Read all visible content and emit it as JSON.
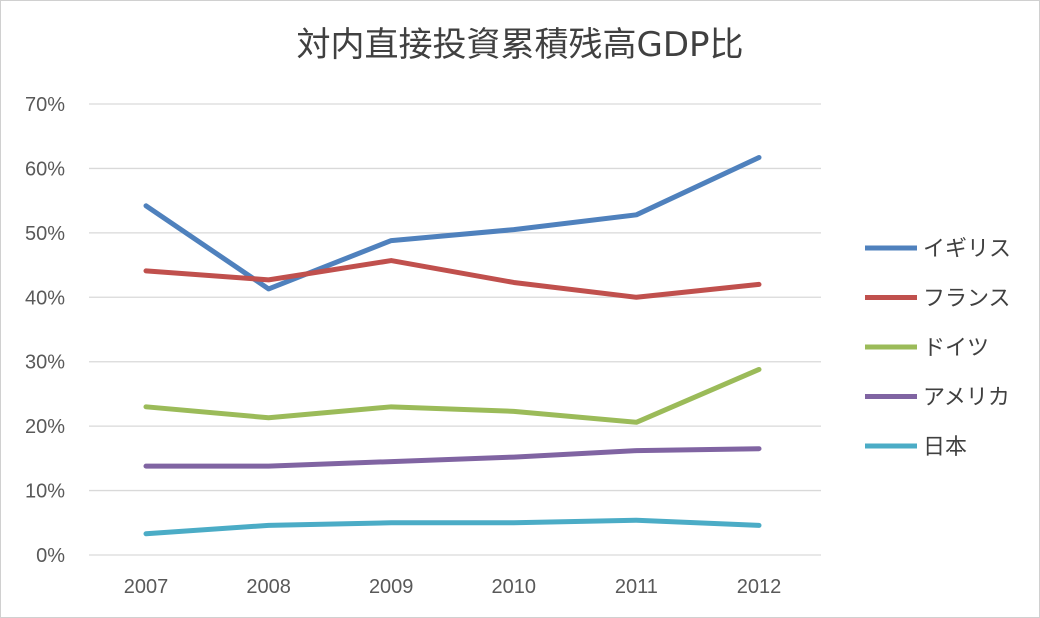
{
  "chart_data": {
    "type": "line",
    "title": "対内直接投資累積残高GDP比",
    "xlabel": "",
    "ylabel": "",
    "categories": [
      "2007",
      "2008",
      "2009",
      "2010",
      "2011",
      "2012"
    ],
    "ylim": [
      0,
      70
    ],
    "y_ticks": [
      "0%",
      "10%",
      "20%",
      "30%",
      "40%",
      "50%",
      "60%",
      "70%"
    ],
    "grid": true,
    "legend_position": "right",
    "series": [
      {
        "name": "イギリス",
        "color": "#4f81bd",
        "values": [
          54.2,
          41.3,
          48.8,
          50.5,
          52.8,
          61.7
        ]
      },
      {
        "name": "フランス",
        "color": "#c0504d",
        "values": [
          44.1,
          42.7,
          45.7,
          42.3,
          40.0,
          42.0
        ]
      },
      {
        "name": "ドイツ",
        "color": "#9bbb59",
        "values": [
          23.0,
          21.3,
          23.0,
          22.3,
          20.6,
          28.8
        ]
      },
      {
        "name": "アメリカ",
        "color": "#8064a2",
        "values": [
          13.8,
          13.8,
          14.5,
          15.2,
          16.2,
          16.5
        ]
      },
      {
        "name": "日本",
        "color": "#4bacc6",
        "values": [
          3.3,
          4.6,
          5.0,
          5.0,
          5.4,
          4.6
        ]
      }
    ]
  }
}
